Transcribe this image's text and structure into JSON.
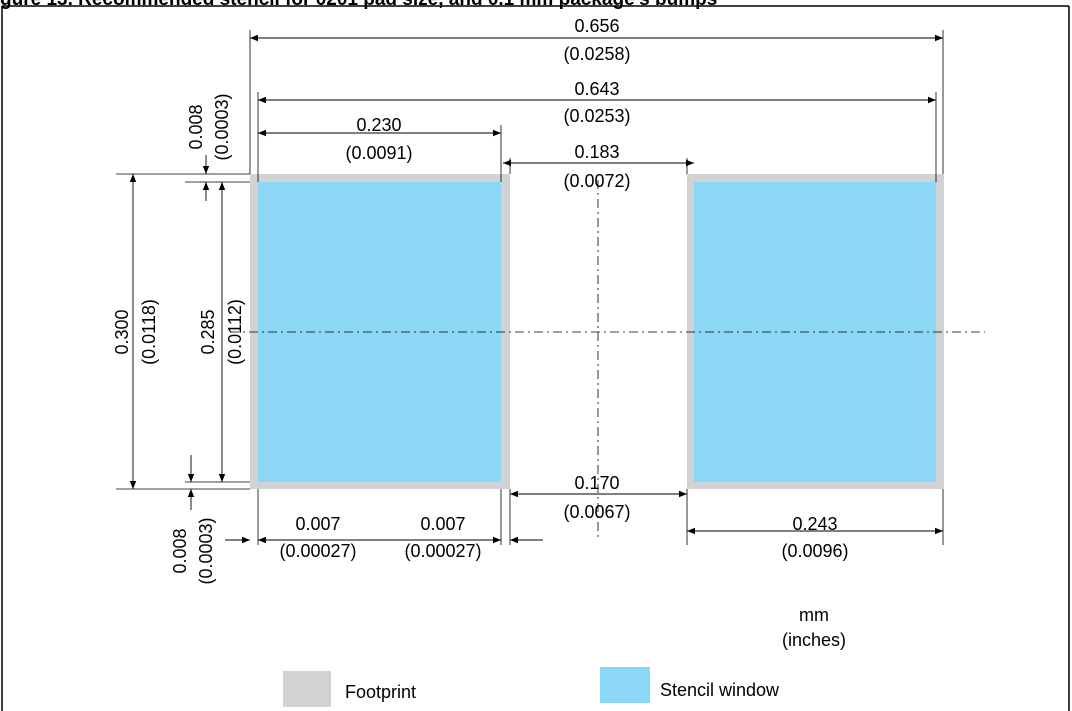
{
  "title": "gure 13. Recommended stencil for 0201 pad size, and 0.1 mm package's bumps",
  "dimensions": {
    "total_width": {
      "mm": "0.656",
      "in": "(0.0258)"
    },
    "inner_width": {
      "mm": "0.643",
      "in": "(0.0253)"
    },
    "pad_width": {
      "mm": "0.230",
      "in": "(0.0091)"
    },
    "pad_gap": {
      "mm": "0.183",
      "in": "(0.0072)"
    },
    "stencil_gap": {
      "mm": "0.170",
      "in": "(0.0067)"
    },
    "right_stencil_width": {
      "mm": "0.243",
      "in": "(0.0096)"
    },
    "left_margin_left": {
      "mm": "0.007",
      "in": "(0.00027)"
    },
    "left_margin_right": {
      "mm": "0.007",
      "in": "(0.00027)"
    },
    "pad_height": {
      "mm": "0.300",
      "in": "(0.0118)"
    },
    "stencil_height": {
      "mm": "0.285",
      "in": "(0.0112)"
    },
    "top_offset": {
      "mm": "0.008",
      "in": "(0.0003)"
    },
    "bottom_offset": {
      "mm": "0.008",
      "in": "(0.0003)"
    }
  },
  "units": {
    "primary": "mm",
    "secondary": "(inches)"
  },
  "legend": [
    {
      "label": "Footprint",
      "color": "#d1d2d4"
    },
    {
      "label": "Stencil window",
      "color": "#8cd7f5"
    }
  ]
}
